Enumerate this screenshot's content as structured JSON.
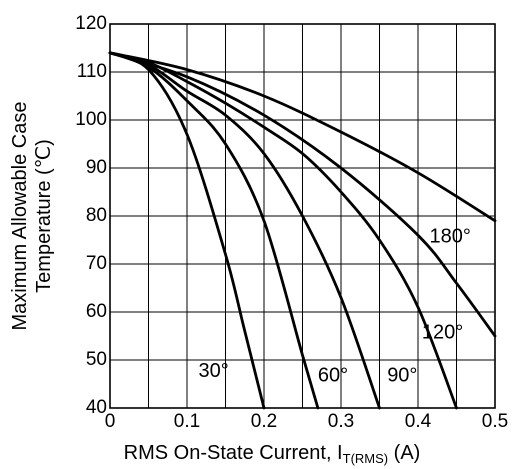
{
  "chart_data": {
    "type": "line",
    "title": "",
    "xlabel": "RMS On-State Current, I",
    "xlabel_sub": "T(RMS)",
    "xlabel_unit": " (A)",
    "ylabel_line1": "Maximum Allowable Case",
    "ylabel_line2": "Temperature (℃)",
    "xlim": [
      0,
      0.5
    ],
    "ylim": [
      40,
      120
    ],
    "x_ticks": [
      "0",
      "0.1",
      "0.2",
      "0.3",
      "0.4",
      "0.5"
    ],
    "y_ticks": [
      "120",
      "110",
      "100",
      "90",
      "80",
      "70",
      "60",
      "50",
      "40"
    ],
    "grid": true,
    "series": [
      {
        "name": "30°",
        "x": [
          0,
          0.05,
          0.1,
          0.15,
          0.175,
          0.2
        ],
        "y": [
          114,
          110.5,
          97,
          72,
          56,
          40
        ]
      },
      {
        "name": "60°",
        "x": [
          0,
          0.05,
          0.1,
          0.15,
          0.2,
          0.25,
          0.27
        ],
        "y": [
          114,
          111,
          104,
          95,
          79,
          51,
          40
        ]
      },
      {
        "name": "90°",
        "x": [
          0,
          0.05,
          0.1,
          0.15,
          0.2,
          0.25,
          0.3,
          0.35
        ],
        "y": [
          114,
          111.5,
          106,
          101,
          93,
          80,
          63,
          40
        ]
      },
      {
        "name": "120°",
        "x": [
          0,
          0.05,
          0.1,
          0.15,
          0.2,
          0.25,
          0.3,
          0.35,
          0.4,
          0.45
        ],
        "y": [
          114,
          112,
          108,
          103.5,
          98.5,
          93,
          85,
          75,
          61,
          40
        ]
      },
      {
        "name": "180°",
        "x": [
          0,
          0.1,
          0.2,
          0.3,
          0.4,
          0.5
        ],
        "y": [
          114,
          110.5,
          105,
          97.5,
          89,
          79
        ]
      },
      {
        "name": "",
        "x": [
          0,
          0.1,
          0.2,
          0.3,
          0.4,
          0.45,
          0.5
        ],
        "y": [
          114,
          109,
          101,
          90,
          76,
          66,
          55
        ]
      }
    ],
    "annotations": [
      {
        "text": "30°",
        "x": 0.115,
        "y": 46.5
      },
      {
        "text": "60°",
        "x": 0.27,
        "y": 45.5
      },
      {
        "text": "90°",
        "x": 0.36,
        "y": 45.5
      },
      {
        "text": "120°",
        "x": 0.405,
        "y": 54.5
      },
      {
        "text": "180°",
        "x": 0.415,
        "y": 74.5
      }
    ]
  }
}
